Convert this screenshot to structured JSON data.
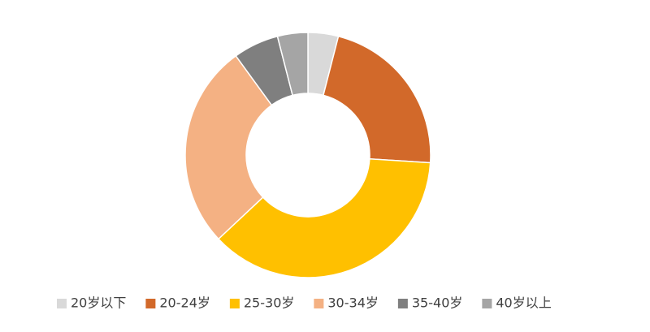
{
  "chart_data": {
    "type": "donut",
    "categories": [
      "20岁以下",
      "20-24岁",
      "25-30岁",
      "30-34岁",
      "35-40岁",
      "40岁以上"
    ],
    "values": [
      4,
      22,
      37,
      27,
      6,
      4
    ],
    "colors": [
      "#d9d9d9",
      "#d2692a",
      "#ffc000",
      "#f4b183",
      "#7f7f7f",
      "#a5a5a5"
    ],
    "legend": "bottom"
  }
}
